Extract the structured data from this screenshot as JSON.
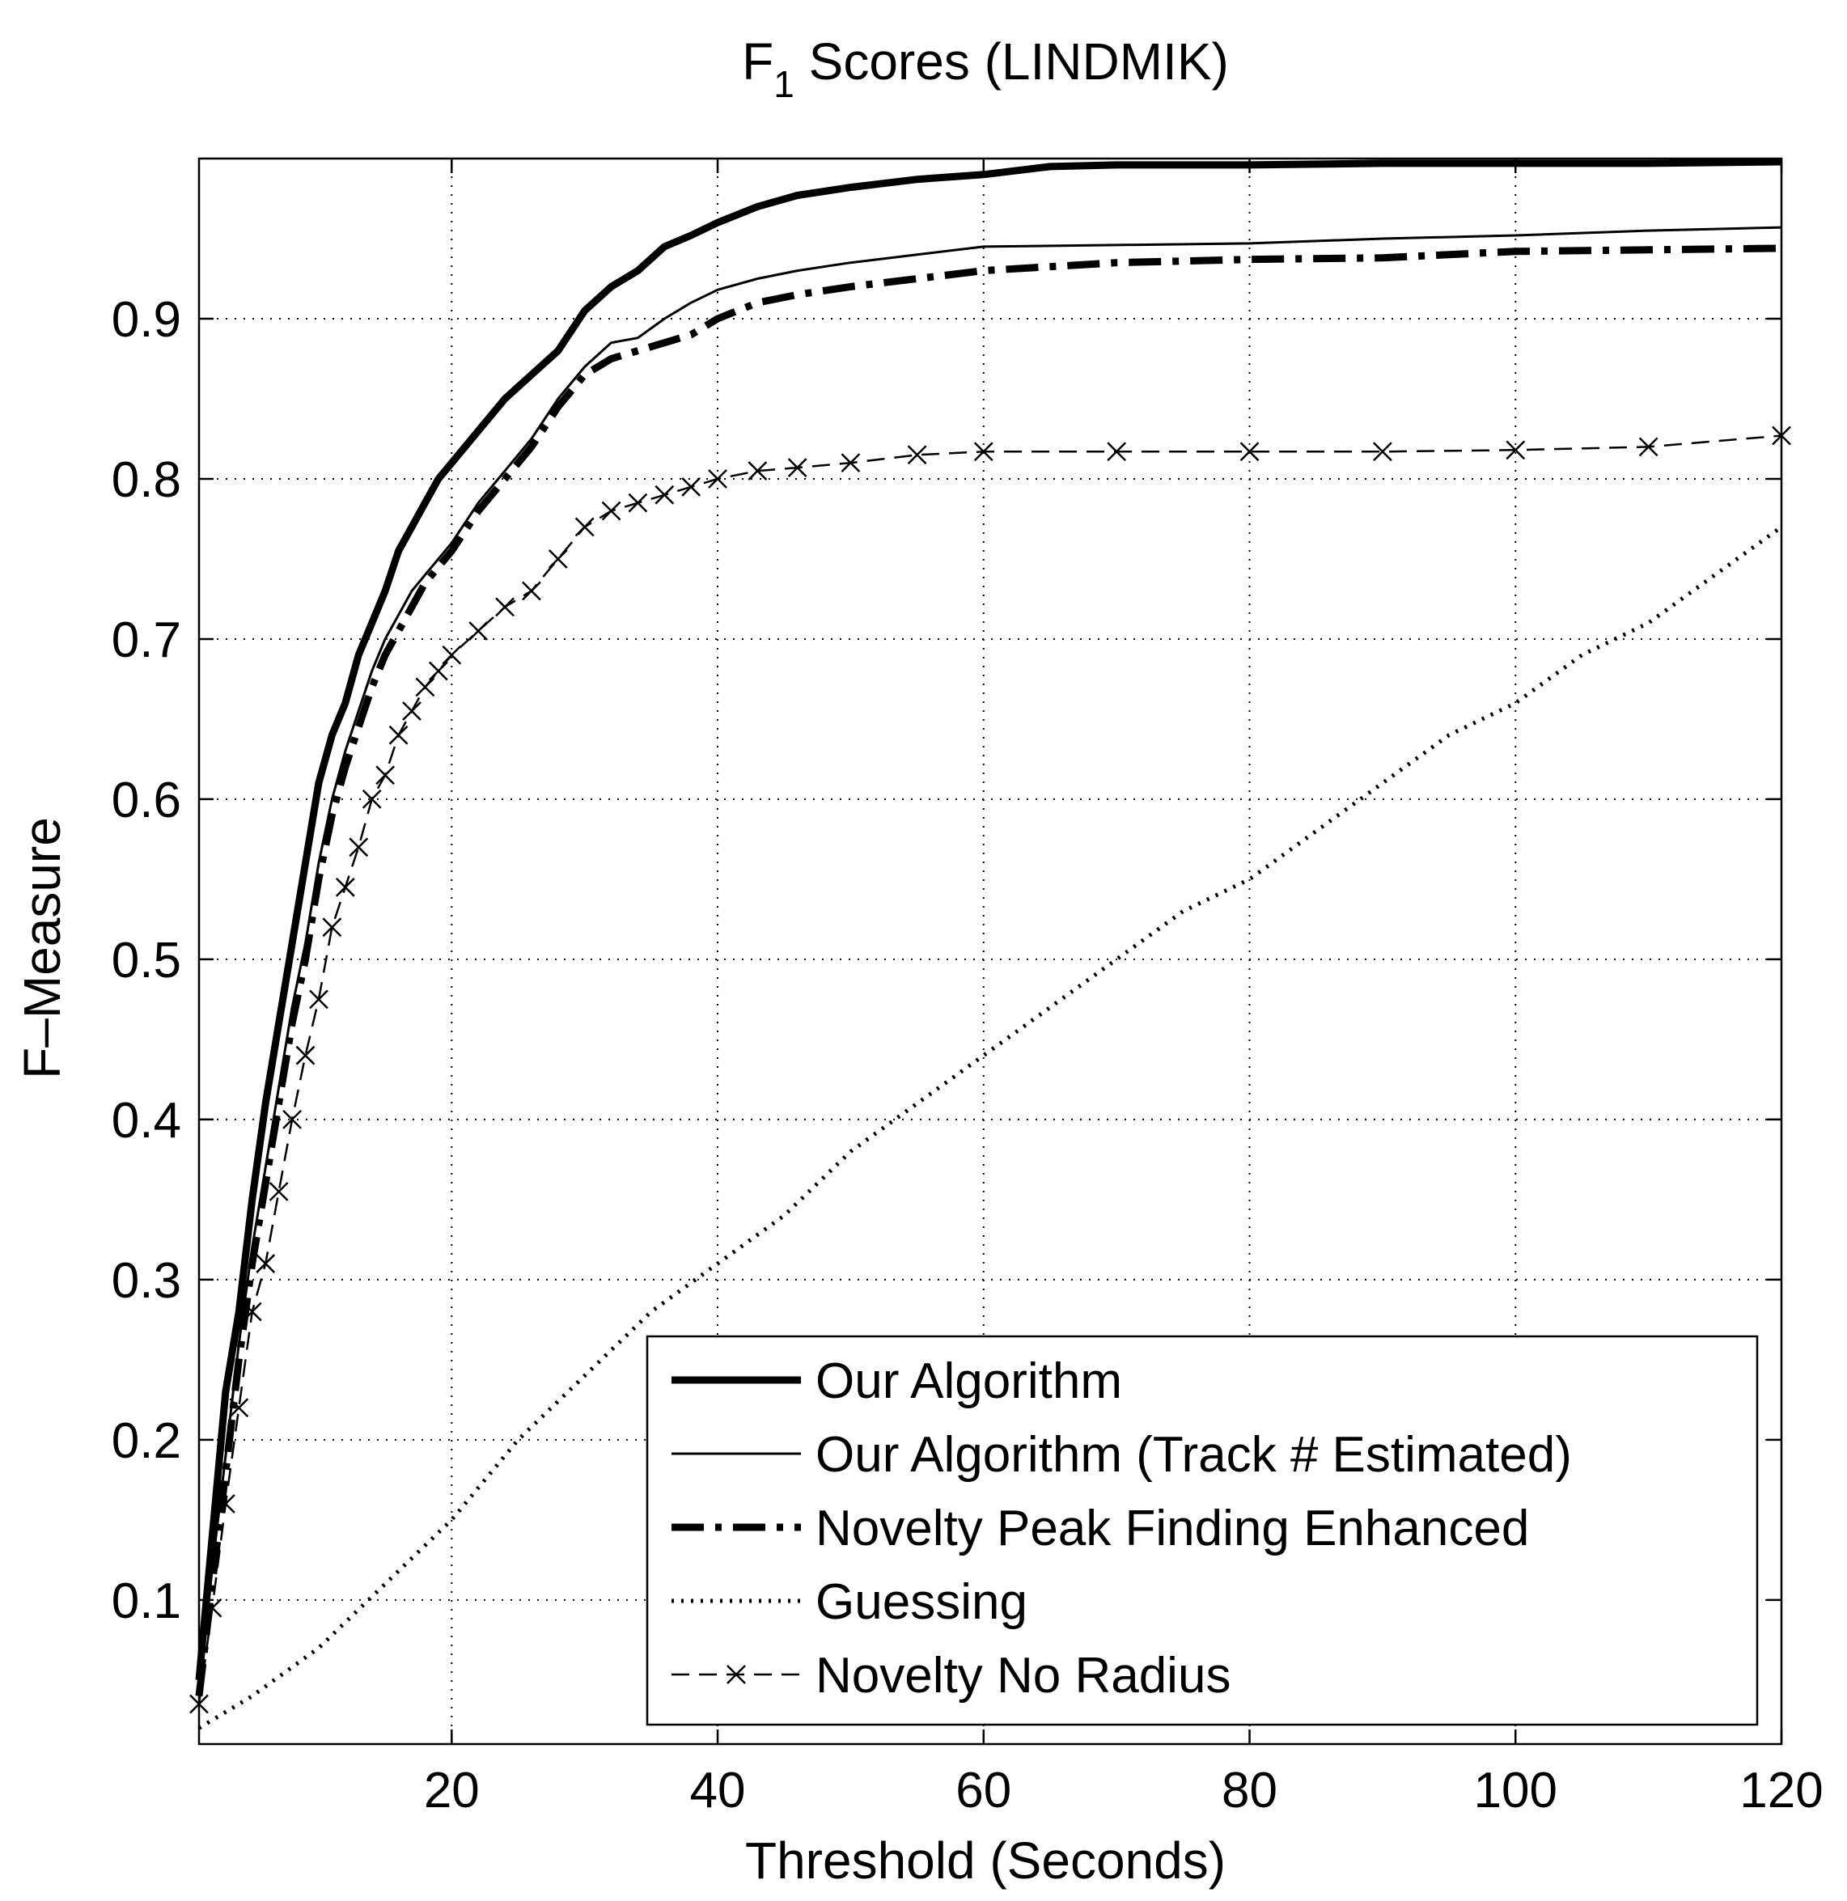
{
  "chart_data": {
    "type": "line",
    "title": "F",
    "title_subscript": "1",
    "title_rest": " Scores (LINDMIK)",
    "xlabel": "Threshold (Seconds)",
    "ylabel": "F–Measure",
    "xlim": [
      1,
      120
    ],
    "ylim": [
      0.01,
      1.0
    ],
    "xticks": [
      20,
      40,
      60,
      80,
      100,
      120
    ],
    "xtick_labels": [
      "20",
      "40",
      "60",
      "80",
      "100",
      "120"
    ],
    "yticks": [
      0.1,
      0.2,
      0.3,
      0.4,
      0.5,
      0.6,
      0.7,
      0.8,
      0.9
    ],
    "ytick_labels": [
      "0.1",
      "0.2",
      "0.3",
      "0.4",
      "0.5",
      "0.6",
      "0.7",
      "0.8",
      "0.9"
    ],
    "grid": true,
    "legend_position": "bottom-right",
    "series": [
      {
        "name": "Our Algorithm",
        "style": "thick-solid",
        "x": [
          1,
          2,
          3,
          4,
          5,
          6,
          7,
          8,
          9,
          10,
          11,
          12,
          13,
          14,
          15,
          16,
          17,
          18,
          19,
          20,
          22,
          24,
          26,
          28,
          30,
          32,
          34,
          36,
          38,
          40,
          43,
          46,
          50,
          55,
          60,
          65,
          70,
          80,
          90,
          100,
          110,
          120
        ],
        "y": [
          0.05,
          0.14,
          0.23,
          0.28,
          0.35,
          0.41,
          0.46,
          0.51,
          0.56,
          0.61,
          0.64,
          0.66,
          0.69,
          0.71,
          0.73,
          0.755,
          0.77,
          0.785,
          0.8,
          0.81,
          0.83,
          0.85,
          0.865,
          0.88,
          0.905,
          0.92,
          0.93,
          0.945,
          0.952,
          0.96,
          0.97,
          0.977,
          0.982,
          0.987,
          0.99,
          0.995,
          0.996,
          0.996,
          0.997,
          0.997,
          0.997,
          0.998
        ]
      },
      {
        "name": "Our Algorithm (Track # Estimated)",
        "style": "thin-solid",
        "x": [
          1,
          2,
          3,
          4,
          5,
          6,
          7,
          8,
          9,
          10,
          11,
          12,
          13,
          14,
          15,
          16,
          17,
          18,
          19,
          20,
          22,
          24,
          26,
          28,
          30,
          32,
          34,
          36,
          38,
          40,
          43,
          46,
          50,
          55,
          60,
          70,
          80,
          90,
          100,
          110,
          120
        ],
        "y": [
          0.04,
          0.12,
          0.19,
          0.26,
          0.32,
          0.37,
          0.42,
          0.47,
          0.51,
          0.56,
          0.6,
          0.63,
          0.655,
          0.68,
          0.7,
          0.715,
          0.73,
          0.74,
          0.75,
          0.76,
          0.785,
          0.805,
          0.825,
          0.85,
          0.87,
          0.885,
          0.888,
          0.9,
          0.91,
          0.918,
          0.925,
          0.93,
          0.935,
          0.94,
          0.945,
          0.946,
          0.947,
          0.95,
          0.952,
          0.955,
          0.957
        ]
      },
      {
        "name": "Novelty Peak Finding Enhanced",
        "style": "thick-dashdot",
        "x": [
          1,
          2,
          3,
          4,
          5,
          6,
          7,
          8,
          9,
          10,
          11,
          12,
          13,
          14,
          15,
          16,
          17,
          18,
          19,
          20,
          22,
          24,
          26,
          28,
          30,
          32,
          34,
          36,
          38,
          40,
          43,
          46,
          50,
          55,
          60,
          70,
          80,
          90,
          100,
          110,
          120
        ],
        "y": [
          0.04,
          0.11,
          0.18,
          0.25,
          0.31,
          0.36,
          0.41,
          0.46,
          0.5,
          0.55,
          0.59,
          0.62,
          0.645,
          0.67,
          0.69,
          0.705,
          0.72,
          0.735,
          0.745,
          0.755,
          0.78,
          0.8,
          0.82,
          0.845,
          0.865,
          0.875,
          0.88,
          0.885,
          0.89,
          0.9,
          0.91,
          0.915,
          0.92,
          0.925,
          0.93,
          0.935,
          0.937,
          0.938,
          0.942,
          0.943,
          0.944
        ]
      },
      {
        "name": "Guessing",
        "style": "dotted",
        "x": [
          1,
          5,
          10,
          15,
          20,
          25,
          30,
          35,
          40,
          45,
          50,
          55,
          60,
          65,
          70,
          75,
          80,
          85,
          90,
          95,
          100,
          105,
          110,
          115,
          120
        ],
        "y": [
          0.02,
          0.04,
          0.07,
          0.11,
          0.15,
          0.2,
          0.24,
          0.28,
          0.31,
          0.34,
          0.38,
          0.41,
          0.44,
          0.47,
          0.5,
          0.53,
          0.55,
          0.58,
          0.61,
          0.64,
          0.66,
          0.69,
          0.71,
          0.74,
          0.77
        ]
      },
      {
        "name": "Novelty No Radius",
        "style": "dashed-x",
        "x": [
          1,
          2,
          3,
          4,
          5,
          6,
          7,
          8,
          9,
          10,
          11,
          12,
          13,
          14,
          15,
          16,
          17,
          18,
          19,
          20,
          22,
          24,
          26,
          28,
          30,
          32,
          34,
          36,
          38,
          40,
          43,
          46,
          50,
          55,
          60,
          70,
          80,
          90,
          100,
          110,
          120
        ],
        "y": [
          0.035,
          0.095,
          0.16,
          0.22,
          0.28,
          0.31,
          0.355,
          0.4,
          0.44,
          0.475,
          0.52,
          0.545,
          0.57,
          0.6,
          0.615,
          0.64,
          0.655,
          0.67,
          0.68,
          0.69,
          0.705,
          0.72,
          0.73,
          0.75,
          0.77,
          0.78,
          0.785,
          0.79,
          0.795,
          0.8,
          0.805,
          0.807,
          0.81,
          0.815,
          0.817,
          0.817,
          0.817,
          0.817,
          0.818,
          0.82,
          0.827
        ]
      }
    ]
  }
}
